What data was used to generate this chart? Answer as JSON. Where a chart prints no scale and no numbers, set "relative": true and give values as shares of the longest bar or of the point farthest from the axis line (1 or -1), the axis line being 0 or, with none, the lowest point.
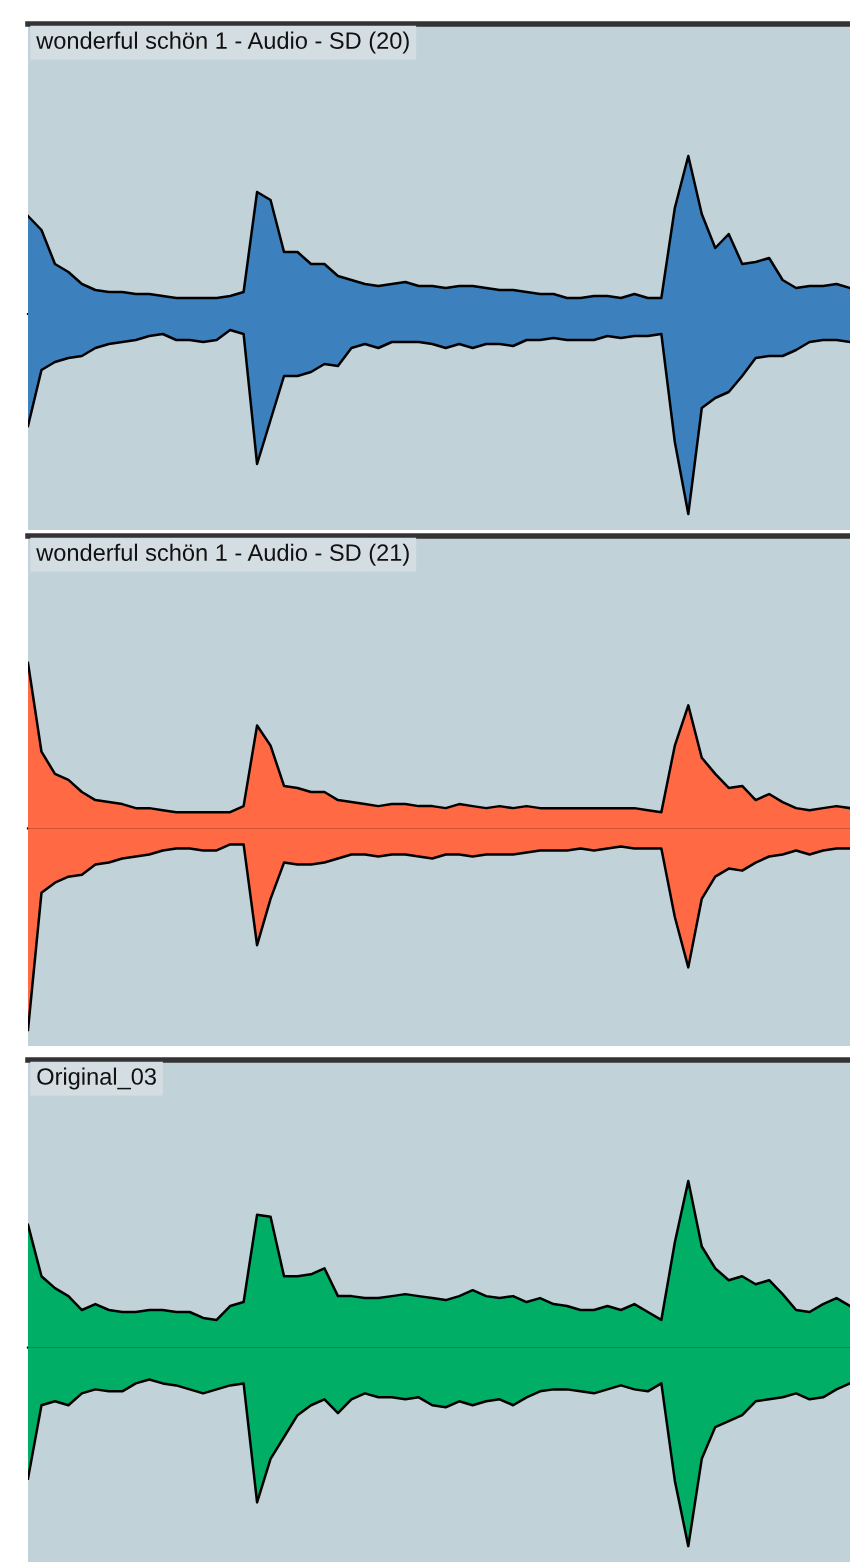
{
  "chart_data": [
    {
      "type": "area",
      "title": "wonderful schön 1 - Audio - SD (20)",
      "relative": true,
      "categories": [
        null,
        null,
        null,
        null,
        null,
        null,
        null,
        null,
        null,
        null,
        null,
        null,
        null,
        null,
        null,
        null,
        null,
        null,
        null,
        null,
        null,
        null,
        null,
        null,
        null,
        null,
        null,
        null,
        null,
        null,
        null,
        null,
        null,
        null,
        null,
        null,
        null,
        null,
        null,
        null,
        null,
        null,
        null,
        null,
        null,
        null,
        null,
        null,
        null,
        null,
        null,
        null,
        null,
        null,
        null,
        null,
        null,
        null,
        null,
        null,
        null,
        null
      ],
      "series": [
        {
          "color": "#3c80bd",
          "values": [
            0.49,
            0.42,
            0.25,
            0.21,
            0.15,
            0.12,
            0.11,
            0.11,
            0.1,
            0.1,
            0.09,
            0.08,
            0.08,
            0.08,
            0.08,
            0.09,
            0.11,
            0.61,
            0.57,
            0.31,
            0.31,
            0.25,
            0.25,
            0.19,
            0.17,
            0.15,
            0.14,
            0.15,
            0.16,
            0.14,
            0.14,
            0.13,
            0.14,
            0.14,
            0.13,
            0.12,
            0.12,
            0.11,
            0.1,
            0.1,
            0.08,
            0.08,
            0.09,
            0.09,
            0.08,
            0.1,
            0.08,
            0.08,
            0.53,
            0.79,
            0.5,
            0.33,
            0.4,
            0.25,
            0.26,
            0.28,
            0.17,
            0.13,
            0.14,
            0.14,
            0.15,
            0.13
          ]
        },
        {
          "color": "#3c80bd",
          "values": [
            -0.56,
            -0.28,
            -0.24,
            -0.22,
            -0.21,
            -0.17,
            -0.15,
            -0.14,
            -0.13,
            -0.11,
            -0.1,
            -0.13,
            -0.13,
            -0.14,
            -0.13,
            -0.08,
            -0.1,
            -0.75,
            -0.53,
            -0.31,
            -0.31,
            -0.29,
            -0.25,
            -0.26,
            -0.17,
            -0.15,
            -0.17,
            -0.14,
            -0.14,
            -0.14,
            -0.15,
            -0.17,
            -0.15,
            -0.17,
            -0.15,
            -0.15,
            -0.16,
            -0.13,
            -0.13,
            -0.12,
            -0.13,
            -0.13,
            -0.13,
            -0.11,
            -0.12,
            -0.11,
            -0.11,
            -0.1,
            -0.64,
            -1.0,
            -0.47,
            -0.42,
            -0.39,
            -0.31,
            -0.22,
            -0.21,
            -0.21,
            -0.18,
            -0.14,
            -0.13,
            -0.13,
            -0.14
          ]
        }
      ]
    },
    {
      "type": "area",
      "title": "wonderful schön 1 - Audio - SD (21)",
      "relative": true,
      "categories": [
        null,
        null,
        null,
        null,
        null,
        null,
        null,
        null,
        null,
        null,
        null,
        null,
        null,
        null,
        null,
        null,
        null,
        null,
        null,
        null,
        null,
        null,
        null,
        null,
        null,
        null,
        null,
        null,
        null,
        null,
        null,
        null,
        null,
        null,
        null,
        null,
        null,
        null,
        null,
        null,
        null,
        null,
        null,
        null,
        null,
        null,
        null,
        null,
        null,
        null,
        null,
        null,
        null,
        null,
        null,
        null,
        null,
        null,
        null,
        null,
        null,
        null
      ],
      "series": [
        {
          "color": "#ff6a45",
          "values": [
            0.82,
            0.38,
            0.27,
            0.24,
            0.18,
            0.14,
            0.13,
            0.12,
            0.1,
            0.1,
            0.09,
            0.08,
            0.08,
            0.08,
            0.08,
            0.08,
            0.11,
            0.51,
            0.41,
            0.21,
            0.2,
            0.18,
            0.18,
            0.14,
            0.13,
            0.12,
            0.11,
            0.12,
            0.12,
            0.11,
            0.11,
            0.1,
            0.12,
            0.11,
            0.1,
            0.11,
            0.1,
            0.11,
            0.1,
            0.1,
            0.1,
            0.1,
            0.1,
            0.1,
            0.1,
            0.1,
            0.09,
            0.08,
            0.41,
            0.61,
            0.35,
            0.27,
            0.2,
            0.21,
            0.14,
            0.17,
            0.13,
            0.1,
            0.09,
            0.1,
            0.11,
            0.1
          ]
        },
        {
          "color": "#ff6a45",
          "values": [
            -1.0,
            -0.32,
            -0.27,
            -0.24,
            -0.23,
            -0.18,
            -0.17,
            -0.15,
            -0.14,
            -0.13,
            -0.11,
            -0.1,
            -0.1,
            -0.11,
            -0.11,
            -0.08,
            -0.08,
            -0.58,
            -0.35,
            -0.17,
            -0.18,
            -0.18,
            -0.17,
            -0.15,
            -0.13,
            -0.13,
            -0.14,
            -0.13,
            -0.13,
            -0.14,
            -0.15,
            -0.13,
            -0.13,
            -0.14,
            -0.13,
            -0.13,
            -0.13,
            -0.12,
            -0.11,
            -0.11,
            -0.11,
            -0.1,
            -0.11,
            -0.1,
            -0.09,
            -0.1,
            -0.1,
            -0.1,
            -0.44,
            -0.69,
            -0.35,
            -0.24,
            -0.2,
            -0.21,
            -0.17,
            -0.14,
            -0.13,
            -0.11,
            -0.13,
            -0.11,
            -0.1,
            -0.1
          ]
        }
      ]
    },
    {
      "type": "area",
      "title": "Original_03",
      "relative": true,
      "categories": [
        null,
        null,
        null,
        null,
        null,
        null,
        null,
        null,
        null,
        null,
        null,
        null,
        null,
        null,
        null,
        null,
        null,
        null,
        null,
        null,
        null,
        null,
        null,
        null,
        null,
        null,
        null,
        null,
        null,
        null,
        null,
        null,
        null,
        null,
        null,
        null,
        null,
        null,
        null,
        null,
        null,
        null,
        null,
        null,
        null,
        null,
        null,
        null,
        null,
        null,
        null,
        null,
        null,
        null,
        null,
        null,
        null,
        null,
        null,
        null,
        null,
        null
      ],
      "series": [
        {
          "color": "#00ae66",
          "values": [
            0.62,
            0.36,
            0.3,
            0.26,
            0.19,
            0.22,
            0.19,
            0.18,
            0.18,
            0.19,
            0.19,
            0.18,
            0.18,
            0.15,
            0.14,
            0.21,
            0.23,
            0.67,
            0.66,
            0.36,
            0.36,
            0.37,
            0.4,
            0.26,
            0.26,
            0.25,
            0.25,
            0.26,
            0.27,
            0.26,
            0.25,
            0.24,
            0.26,
            0.29,
            0.26,
            0.25,
            0.26,
            0.23,
            0.25,
            0.22,
            0.21,
            0.19,
            0.19,
            0.21,
            0.19,
            0.22,
            0.18,
            0.14,
            0.53,
            0.84,
            0.51,
            0.4,
            0.34,
            0.36,
            0.32,
            0.34,
            0.27,
            0.19,
            0.18,
            0.22,
            0.25,
            0.21
          ]
        },
        {
          "color": "#00ae66",
          "values": [
            -0.66,
            -0.29,
            -0.27,
            -0.29,
            -0.23,
            -0.21,
            -0.22,
            -0.22,
            -0.18,
            -0.16,
            -0.18,
            -0.19,
            -0.21,
            -0.23,
            -0.21,
            -0.19,
            -0.18,
            -0.78,
            -0.56,
            -0.45,
            -0.34,
            -0.29,
            -0.26,
            -0.33,
            -0.26,
            -0.23,
            -0.25,
            -0.25,
            -0.26,
            -0.25,
            -0.29,
            -0.3,
            -0.27,
            -0.29,
            -0.27,
            -0.26,
            -0.29,
            -0.25,
            -0.22,
            -0.21,
            -0.21,
            -0.22,
            -0.23,
            -0.21,
            -0.19,
            -0.21,
            -0.22,
            -0.18,
            -0.67,
            -1.0,
            -0.56,
            -0.4,
            -0.37,
            -0.34,
            -0.27,
            -0.26,
            -0.25,
            -0.23,
            -0.26,
            -0.25,
            -0.21,
            -0.18
          ]
        }
      ]
    }
  ]
}
